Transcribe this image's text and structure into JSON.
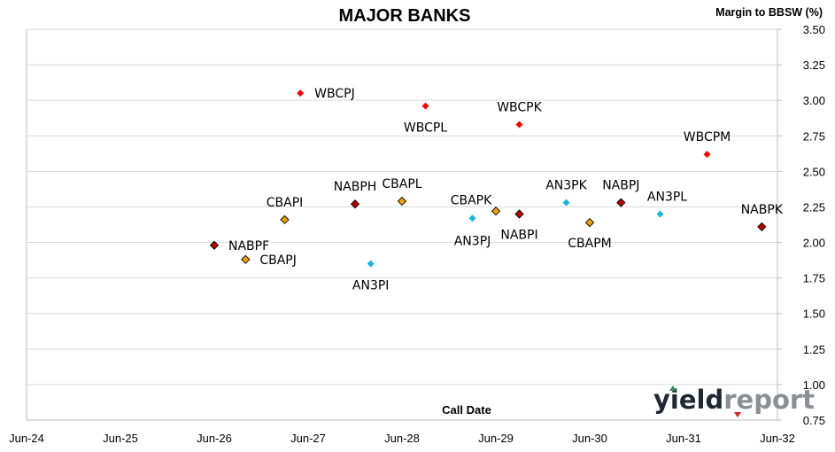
{
  "chart_data": {
    "type": "scatter",
    "title": "MAJOR BANKS",
    "ylabel": "Margin to BBSW (%)",
    "xlabel": "Call Date",
    "x_tick_labels": [
      "Jun-24",
      "Jun-25",
      "Jun-26",
      "Jun-27",
      "Jun-28",
      "Jun-29",
      "Jun-30",
      "Jun-31",
      "Jun-32"
    ],
    "x_range": [
      "2024-06",
      "2032-06"
    ],
    "y_ticks": [
      "0.75",
      "1.00",
      "1.25",
      "1.50",
      "1.75",
      "2.00",
      "2.25",
      "2.50",
      "2.75",
      "3.00",
      "3.25",
      "3.50"
    ],
    "ylim": [
      0.75,
      3.5
    ],
    "y_axis_side": "right",
    "grid": "horizontal",
    "groups": [
      {
        "issuer": "WBC",
        "color": "#ff0000",
        "outline": false
      },
      {
        "issuer": "NAB",
        "color": "#c00000",
        "outline": true
      },
      {
        "issuer": "CBA",
        "color": "#f0a000",
        "outline": true
      },
      {
        "issuer": "ANZ",
        "color": "#1ab2ea",
        "outline": false
      }
    ],
    "points": [
      {
        "label": "WBCPJ",
        "issuer": "WBC",
        "x": "2027-05",
        "y": 3.05
      },
      {
        "label": "WBCPL",
        "issuer": "WBC",
        "x": "2028-09",
        "y": 2.96
      },
      {
        "label": "WBCPK",
        "issuer": "WBC",
        "x": "2029-09",
        "y": 2.83
      },
      {
        "label": "WBCPM",
        "issuer": "WBC",
        "x": "2031-09",
        "y": 2.62
      },
      {
        "label": "NABPF",
        "issuer": "NAB",
        "x": "2026-06",
        "y": 1.98
      },
      {
        "label": "NABPH",
        "issuer": "NAB",
        "x": "2027-12",
        "y": 2.27
      },
      {
        "label": "NABPI",
        "issuer": "NAB",
        "x": "2029-09",
        "y": 2.2
      },
      {
        "label": "NABPJ",
        "issuer": "NAB",
        "x": "2030-10",
        "y": 2.28
      },
      {
        "label": "NABPK",
        "issuer": "NAB",
        "x": "2032-04",
        "y": 2.11
      },
      {
        "label": "CBAPI",
        "issuer": "CBA",
        "x": "2027-03",
        "y": 2.16
      },
      {
        "label": "CBAPJ",
        "issuer": "CBA",
        "x": "2026-10",
        "y": 1.88
      },
      {
        "label": "CBAPL",
        "issuer": "CBA",
        "x": "2028-06",
        "y": 2.29
      },
      {
        "label": "CBAPK",
        "issuer": "CBA",
        "x": "2029-06",
        "y": 2.22
      },
      {
        "label": "CBAPM",
        "issuer": "CBA",
        "x": "2030-06",
        "y": 2.14
      },
      {
        "label": "AN3PI",
        "issuer": "ANZ",
        "x": "2028-02",
        "y": 1.85
      },
      {
        "label": "AN3PJ",
        "issuer": "ANZ",
        "x": "2029-03",
        "y": 2.17
      },
      {
        "label": "AN3PK",
        "issuer": "ANZ",
        "x": "2030-03",
        "y": 2.28
      },
      {
        "label": "AN3PL",
        "issuer": "ANZ",
        "x": "2031-03",
        "y": 2.2
      }
    ]
  },
  "logo": {
    "text_dark": "yield",
    "text_light": "report",
    "colors": {
      "dark": "#1f2733",
      "light": "#8a8f96",
      "accent_green": "#2e8b57",
      "accent_red": "#e02020"
    }
  }
}
